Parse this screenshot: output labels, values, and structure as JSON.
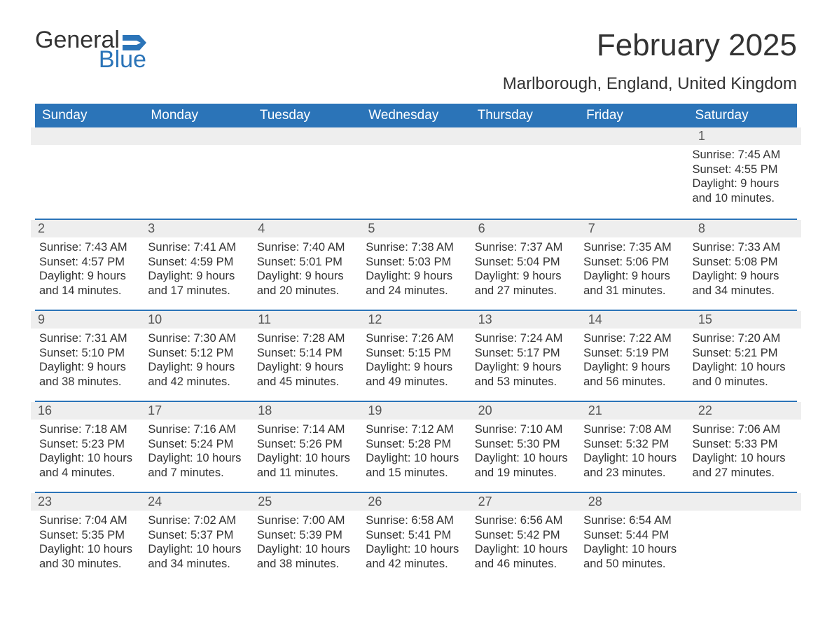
{
  "logo": {
    "text1": "General",
    "text2": "Blue"
  },
  "title": "February 2025",
  "subtitle": "Marlborough, England, United Kingdom",
  "colors": {
    "brand_blue": "#2b74b8",
    "header_text": "#ffffff",
    "daybar_bg": "#eeeeee",
    "body_text": "#333333",
    "daynum_text": "#555555",
    "background": "#ffffff"
  },
  "day_headers": [
    "Sunday",
    "Monday",
    "Tuesday",
    "Wednesday",
    "Thursday",
    "Friday",
    "Saturday"
  ],
  "weeks": [
    [
      null,
      null,
      null,
      null,
      null,
      null,
      {
        "n": "1",
        "sunrise": "Sunrise: 7:45 AM",
        "sunset": "Sunset: 4:55 PM",
        "daylight": "Daylight: 9 hours and 10 minutes."
      }
    ],
    [
      {
        "n": "2",
        "sunrise": "Sunrise: 7:43 AM",
        "sunset": "Sunset: 4:57 PM",
        "daylight": "Daylight: 9 hours and 14 minutes."
      },
      {
        "n": "3",
        "sunrise": "Sunrise: 7:41 AM",
        "sunset": "Sunset: 4:59 PM",
        "daylight": "Daylight: 9 hours and 17 minutes."
      },
      {
        "n": "4",
        "sunrise": "Sunrise: 7:40 AM",
        "sunset": "Sunset: 5:01 PM",
        "daylight": "Daylight: 9 hours and 20 minutes."
      },
      {
        "n": "5",
        "sunrise": "Sunrise: 7:38 AM",
        "sunset": "Sunset: 5:03 PM",
        "daylight": "Daylight: 9 hours and 24 minutes."
      },
      {
        "n": "6",
        "sunrise": "Sunrise: 7:37 AM",
        "sunset": "Sunset: 5:04 PM",
        "daylight": "Daylight: 9 hours and 27 minutes."
      },
      {
        "n": "7",
        "sunrise": "Sunrise: 7:35 AM",
        "sunset": "Sunset: 5:06 PM",
        "daylight": "Daylight: 9 hours and 31 minutes."
      },
      {
        "n": "8",
        "sunrise": "Sunrise: 7:33 AM",
        "sunset": "Sunset: 5:08 PM",
        "daylight": "Daylight: 9 hours and 34 minutes."
      }
    ],
    [
      {
        "n": "9",
        "sunrise": "Sunrise: 7:31 AM",
        "sunset": "Sunset: 5:10 PM",
        "daylight": "Daylight: 9 hours and 38 minutes."
      },
      {
        "n": "10",
        "sunrise": "Sunrise: 7:30 AM",
        "sunset": "Sunset: 5:12 PM",
        "daylight": "Daylight: 9 hours and 42 minutes."
      },
      {
        "n": "11",
        "sunrise": "Sunrise: 7:28 AM",
        "sunset": "Sunset: 5:14 PM",
        "daylight": "Daylight: 9 hours and 45 minutes."
      },
      {
        "n": "12",
        "sunrise": "Sunrise: 7:26 AM",
        "sunset": "Sunset: 5:15 PM",
        "daylight": "Daylight: 9 hours and 49 minutes."
      },
      {
        "n": "13",
        "sunrise": "Sunrise: 7:24 AM",
        "sunset": "Sunset: 5:17 PM",
        "daylight": "Daylight: 9 hours and 53 minutes."
      },
      {
        "n": "14",
        "sunrise": "Sunrise: 7:22 AM",
        "sunset": "Sunset: 5:19 PM",
        "daylight": "Daylight: 9 hours and 56 minutes."
      },
      {
        "n": "15",
        "sunrise": "Sunrise: 7:20 AM",
        "sunset": "Sunset: 5:21 PM",
        "daylight": "Daylight: 10 hours and 0 minutes."
      }
    ],
    [
      {
        "n": "16",
        "sunrise": "Sunrise: 7:18 AM",
        "sunset": "Sunset: 5:23 PM",
        "daylight": "Daylight: 10 hours and 4 minutes."
      },
      {
        "n": "17",
        "sunrise": "Sunrise: 7:16 AM",
        "sunset": "Sunset: 5:24 PM",
        "daylight": "Daylight: 10 hours and 7 minutes."
      },
      {
        "n": "18",
        "sunrise": "Sunrise: 7:14 AM",
        "sunset": "Sunset: 5:26 PM",
        "daylight": "Daylight: 10 hours and 11 minutes."
      },
      {
        "n": "19",
        "sunrise": "Sunrise: 7:12 AM",
        "sunset": "Sunset: 5:28 PM",
        "daylight": "Daylight: 10 hours and 15 minutes."
      },
      {
        "n": "20",
        "sunrise": "Sunrise: 7:10 AM",
        "sunset": "Sunset: 5:30 PM",
        "daylight": "Daylight: 10 hours and 19 minutes."
      },
      {
        "n": "21",
        "sunrise": "Sunrise: 7:08 AM",
        "sunset": "Sunset: 5:32 PM",
        "daylight": "Daylight: 10 hours and 23 minutes."
      },
      {
        "n": "22",
        "sunrise": "Sunrise: 7:06 AM",
        "sunset": "Sunset: 5:33 PM",
        "daylight": "Daylight: 10 hours and 27 minutes."
      }
    ],
    [
      {
        "n": "23",
        "sunrise": "Sunrise: 7:04 AM",
        "sunset": "Sunset: 5:35 PM",
        "daylight": "Daylight: 10 hours and 30 minutes."
      },
      {
        "n": "24",
        "sunrise": "Sunrise: 7:02 AM",
        "sunset": "Sunset: 5:37 PM",
        "daylight": "Daylight: 10 hours and 34 minutes."
      },
      {
        "n": "25",
        "sunrise": "Sunrise: 7:00 AM",
        "sunset": "Sunset: 5:39 PM",
        "daylight": "Daylight: 10 hours and 38 minutes."
      },
      {
        "n": "26",
        "sunrise": "Sunrise: 6:58 AM",
        "sunset": "Sunset: 5:41 PM",
        "daylight": "Daylight: 10 hours and 42 minutes."
      },
      {
        "n": "27",
        "sunrise": "Sunrise: 6:56 AM",
        "sunset": "Sunset: 5:42 PM",
        "daylight": "Daylight: 10 hours and 46 minutes."
      },
      {
        "n": "28",
        "sunrise": "Sunrise: 6:54 AM",
        "sunset": "Sunset: 5:44 PM",
        "daylight": "Daylight: 10 hours and 50 minutes."
      },
      null
    ]
  ]
}
